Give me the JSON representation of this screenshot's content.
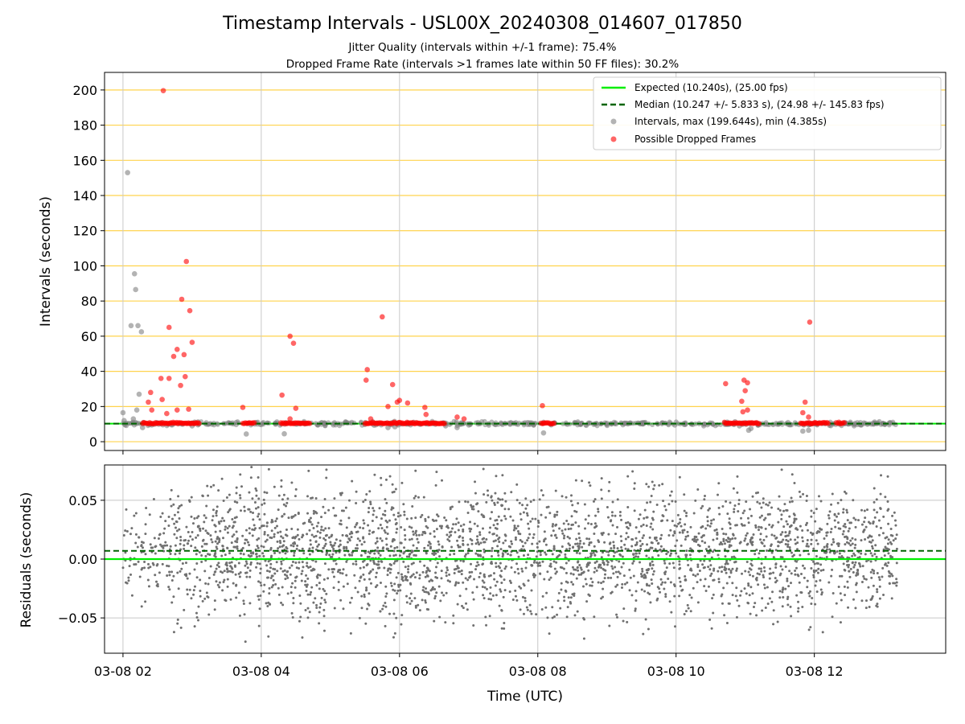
{
  "chart_data": [
    {
      "type": "scatter",
      "title": "Timestamp Intervals - USL00X_20240308_014607_017850",
      "subtitle_lines": [
        "Jitter Quality (intervals within +/-1 frame): 75.4%",
        "Dropped Frame Rate (intervals >1 frames late within 50 FF files): 30.2%"
      ],
      "xlabel": "",
      "ylabel": "Intervals (seconds)",
      "x_axis": "time_utc",
      "xlim": [
        "2024-03-08T01:44",
        "2024-03-08T13:54"
      ],
      "ylim": [
        -5,
        210
      ],
      "yticks": [
        0,
        20,
        40,
        60,
        80,
        100,
        120,
        140,
        160,
        180,
        200
      ],
      "grid": {
        "x": true,
        "y": true,
        "y_color": "#ffd34d",
        "x_color": "#c8c8c8"
      },
      "legend_position": "top-right",
      "series": [
        {
          "name": "Expected (10.240s), (25.00 fps)",
          "kind": "hline",
          "y": 10.24,
          "color": "#00ee00",
          "style": "solid"
        },
        {
          "name": "Median (10.247 +/- 5.833 s), (24.98 +/- 145.83 fps)",
          "kind": "hline",
          "y": 10.247,
          "color": "#006400",
          "style": "dashed"
        },
        {
          "name": "Intervals, max (199.644s), min (4.385s)",
          "kind": "scatter",
          "color": "#808080",
          "points": [
            [
              "2024-03-08T02:00",
              16.5
            ],
            [
              "2024-03-08T02:01",
              12
            ],
            [
              "2024-03-08T02:04",
              153
            ],
            [
              "2024-03-08T02:07",
              66
            ],
            [
              "2024-03-08T02:08",
              10.5
            ],
            [
              "2024-03-08T02:09",
              13
            ],
            [
              "2024-03-08T02:10",
              95.5
            ],
            [
              "2024-03-08T02:11",
              86.5
            ],
            [
              "2024-03-08T02:12",
              18
            ],
            [
              "2024-03-08T02:13",
              66
            ],
            [
              "2024-03-08T02:14",
              27
            ],
            [
              "2024-03-08T02:16",
              62.5
            ],
            [
              "2024-03-08T02:17",
              8
            ],
            [
              "2024-03-08T03:47",
              4.385
            ],
            [
              "2024-03-08T04:20",
              4.5
            ],
            [
              "2024-03-08T05:50",
              8
            ],
            [
              "2024-03-08T05:56",
              8.5
            ],
            [
              "2024-03-08T06:50",
              8
            ],
            [
              "2024-03-08T08:05",
              5
            ],
            [
              "2024-03-08T10:55",
              9
            ],
            [
              "2024-03-08T11:03",
              6.5
            ],
            [
              "2024-03-08T11:05",
              7.5
            ],
            [
              "2024-03-08T11:50",
              6
            ],
            [
              "2024-03-08T11:55",
              6.5
            ],
            [
              "2024-03-08T02:25",
              9.5
            ],
            [
              "2024-03-08T03:00",
              9
            ],
            [
              "2024-03-08T04:55",
              10.5
            ],
            [
              "2024-03-08T06:40",
              9
            ],
            [
              "2024-03-08T09:00",
              10.5
            ],
            [
              "2024-03-08T10:20",
              10.3
            ],
            [
              "2024-03-08T12:40",
              9.6
            ],
            [
              "2024-03-08T13:05",
              10.6
            ]
          ]
        },
        {
          "name": "Possible Dropped Frames",
          "kind": "scatter",
          "color": "#ff0000",
          "points": [
            [
              "2024-03-08T02:35",
              199.644
            ],
            [
              "2024-03-08T02:55",
              102.5
            ],
            [
              "2024-03-08T02:51",
              81
            ],
            [
              "2024-03-08T02:58",
              74.5
            ],
            [
              "2024-03-08T02:40",
              65
            ],
            [
              "2024-03-08T03:00",
              56.5
            ],
            [
              "2024-03-08T02:47",
              52.5
            ],
            [
              "2024-03-08T02:53",
              49.5
            ],
            [
              "2024-03-08T02:44",
              48.5
            ],
            [
              "2024-03-08T02:54",
              37
            ],
            [
              "2024-03-08T02:33",
              36
            ],
            [
              "2024-03-08T02:40",
              36
            ],
            [
              "2024-03-08T02:50",
              32
            ],
            [
              "2024-03-08T02:24",
              28
            ],
            [
              "2024-03-08T02:34",
              24
            ],
            [
              "2024-03-08T02:22",
              22.5
            ],
            [
              "2024-03-08T02:25",
              18
            ],
            [
              "2024-03-08T02:47",
              18
            ],
            [
              "2024-03-08T02:57",
              18.5
            ],
            [
              "2024-03-08T02:38",
              16
            ],
            [
              "2024-03-08T03:44",
              19.5
            ],
            [
              "2024-03-08T04:25",
              60
            ],
            [
              "2024-03-08T04:28",
              56
            ],
            [
              "2024-03-08T04:18",
              26.5
            ],
            [
              "2024-03-08T04:30",
              19
            ],
            [
              "2024-03-08T04:25",
              13
            ],
            [
              "2024-03-08T05:32",
              41
            ],
            [
              "2024-03-08T05:31",
              35
            ],
            [
              "2024-03-08T05:35",
              13
            ],
            [
              "2024-03-08T05:45",
              71
            ],
            [
              "2024-03-08T05:50",
              20
            ],
            [
              "2024-03-08T05:54",
              32.5
            ],
            [
              "2024-03-08T06:00",
              23.5
            ],
            [
              "2024-03-08T06:07",
              22
            ],
            [
              "2024-03-08T05:58",
              22.5
            ],
            [
              "2024-03-08T06:22",
              19.5
            ],
            [
              "2024-03-08T06:23",
              15.5
            ],
            [
              "2024-03-08T06:50",
              14
            ],
            [
              "2024-03-08T06:56",
              13
            ],
            [
              "2024-03-08T08:04",
              20.5
            ],
            [
              "2024-03-08T10:43",
              33
            ],
            [
              "2024-03-08T10:59",
              35
            ],
            [
              "2024-03-08T11:02",
              33.5
            ],
            [
              "2024-03-08T11:00",
              29
            ],
            [
              "2024-03-08T10:57",
              23
            ],
            [
              "2024-03-08T11:02",
              18
            ],
            [
              "2024-03-08T10:58",
              17
            ],
            [
              "2024-03-08T11:52",
              22.5
            ],
            [
              "2024-03-08T11:56",
              68
            ],
            [
              "2024-03-08T11:50",
              16.5
            ],
            [
              "2024-03-08T11:55",
              14
            ]
          ],
          "dense_runs_at_about_10s": [
            [
              "2024-03-08T02:17",
              "2024-03-08T03:06"
            ],
            [
              "2024-03-08T03:44",
              "2024-03-08T03:54"
            ],
            [
              "2024-03-08T04:17",
              "2024-03-08T04:42"
            ],
            [
              "2024-03-08T05:30",
              "2024-03-08T06:39"
            ],
            [
              "2024-03-08T08:03",
              "2024-03-08T08:14"
            ],
            [
              "2024-03-08T10:42",
              "2024-03-08T11:12"
            ],
            [
              "2024-03-08T11:48",
              "2024-03-08T12:12"
            ],
            [
              "2024-03-08T12:19",
              "2024-03-08T12:26"
            ]
          ]
        }
      ]
    },
    {
      "type": "scatter",
      "title": "",
      "xlabel": "Time (UTC)",
      "ylabel": "Residuals (seconds)",
      "x_axis": "time_utc",
      "xlim": [
        "2024-03-08T01:44",
        "2024-03-08T13:54"
      ],
      "ylim": [
        -0.08,
        0.08
      ],
      "yticks": [
        -0.05,
        0.0,
        0.05
      ],
      "ytick_labels": [
        "−0.05",
        "0.00",
        "0.05"
      ],
      "xticks": [
        "2024-03-08T02:00",
        "2024-03-08T04:00",
        "2024-03-08T06:00",
        "2024-03-08T08:00",
        "2024-03-08T10:00",
        "2024-03-08T12:00"
      ],
      "xtick_labels": [
        "03-08 02",
        "03-08 04",
        "03-08 06",
        "03-08 08",
        "03-08 10",
        "03-08 12"
      ],
      "grid": {
        "x": true,
        "y": true
      },
      "series": [
        {
          "kind": "hline",
          "y": 0.0,
          "color": "#00ee00",
          "style": "solid"
        },
        {
          "kind": "hline",
          "y": 0.007,
          "color": "#006400",
          "style": "dashed"
        },
        {
          "kind": "scatter",
          "color": "#707070",
          "x_range": [
            "2024-03-08T02:00",
            "2024-03-08T13:12"
          ],
          "y_spread": [
            -0.08,
            0.08
          ],
          "y_center": 0.007,
          "sparse_range": [
            "2024-03-08T02:00",
            "2024-03-08T02:40"
          ]
        }
      ]
    }
  ]
}
